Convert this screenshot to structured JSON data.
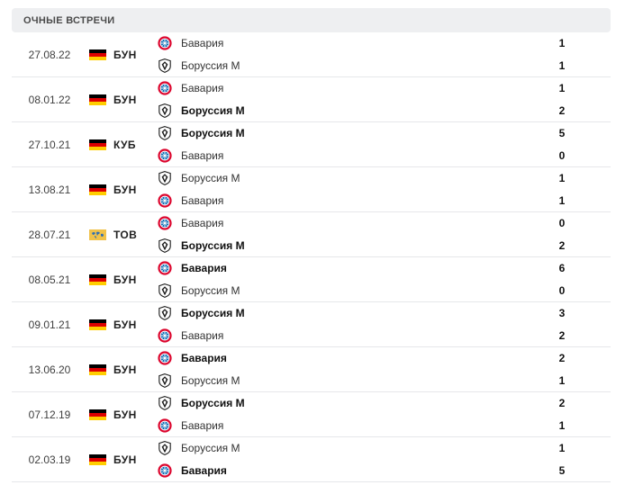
{
  "section": {
    "title": "ОЧНЫЕ ВСТРЕЧИ"
  },
  "matches": [
    {
      "date": "27.08.22",
      "comp": "БУН",
      "flag": "de",
      "home": {
        "name": "Бавария",
        "crest": "bayern",
        "score": "1",
        "bold": false
      },
      "away": {
        "name": "Боруссия М",
        "crest": "gladbach",
        "score": "1",
        "bold": false
      }
    },
    {
      "date": "08.01.22",
      "comp": "БУН",
      "flag": "de",
      "home": {
        "name": "Бавария",
        "crest": "bayern",
        "score": "1",
        "bold": false
      },
      "away": {
        "name": "Боруссия М",
        "crest": "gladbach",
        "score": "2",
        "bold": true
      }
    },
    {
      "date": "27.10.21",
      "comp": "КУБ",
      "flag": "de",
      "home": {
        "name": "Боруссия М",
        "crest": "gladbach",
        "score": "5",
        "bold": true
      },
      "away": {
        "name": "Бавария",
        "crest": "bayern",
        "score": "0",
        "bold": false
      }
    },
    {
      "date": "13.08.21",
      "comp": "БУН",
      "flag": "de",
      "home": {
        "name": "Боруссия М",
        "crest": "gladbach",
        "score": "1",
        "bold": false
      },
      "away": {
        "name": "Бавария",
        "crest": "bayern",
        "score": "1",
        "bold": false
      }
    },
    {
      "date": "28.07.21",
      "comp": "ТОВ",
      "flag": "world",
      "home": {
        "name": "Бавария",
        "crest": "bayern",
        "score": "0",
        "bold": false
      },
      "away": {
        "name": "Боруссия М",
        "crest": "gladbach",
        "score": "2",
        "bold": true
      }
    },
    {
      "date": "08.05.21",
      "comp": "БУН",
      "flag": "de",
      "home": {
        "name": "Бавария",
        "crest": "bayern",
        "score": "6",
        "bold": true
      },
      "away": {
        "name": "Боруссия М",
        "crest": "gladbach",
        "score": "0",
        "bold": false
      }
    },
    {
      "date": "09.01.21",
      "comp": "БУН",
      "flag": "de",
      "home": {
        "name": "Боруссия М",
        "crest": "gladbach",
        "score": "3",
        "bold": true
      },
      "away": {
        "name": "Бавария",
        "crest": "bayern",
        "score": "2",
        "bold": false
      }
    },
    {
      "date": "13.06.20",
      "comp": "БУН",
      "flag": "de",
      "home": {
        "name": "Бавария",
        "crest": "bayern",
        "score": "2",
        "bold": true
      },
      "away": {
        "name": "Боруссия М",
        "crest": "gladbach",
        "score": "1",
        "bold": false
      }
    },
    {
      "date": "07.12.19",
      "comp": "БУН",
      "flag": "de",
      "home": {
        "name": "Боруссия М",
        "crest": "gladbach",
        "score": "2",
        "bold": true
      },
      "away": {
        "name": "Бавария",
        "crest": "bayern",
        "score": "1",
        "bold": false
      }
    },
    {
      "date": "02.03.19",
      "comp": "БУН",
      "flag": "de",
      "home": {
        "name": "Боруссия М",
        "crest": "gladbach",
        "score": "1",
        "bold": false
      },
      "away": {
        "name": "Бавария",
        "crest": "bayern",
        "score": "5",
        "bold": true
      }
    }
  ],
  "colors": {
    "bayern_red": "#dc052d",
    "bayern_blue": "#0066b2",
    "gladbach_black": "#1a1a1a",
    "header_bg": "#eeeff1",
    "divider": "#e6e7ea"
  },
  "icons": {
    "bayern": "bayern-crest-icon",
    "gladbach": "gladbach-crest-icon",
    "de": "germany-flag-icon",
    "world": "world-flag-icon"
  }
}
